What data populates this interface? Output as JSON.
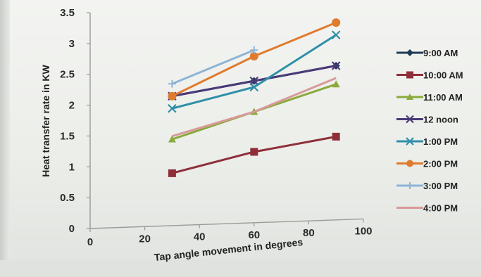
{
  "chart_data": {
    "type": "line",
    "xlabel": "Tap angle movement in degrees",
    "ylabel": "Heat transfer rate in KW",
    "xlim": [
      0,
      100
    ],
    "ylim": [
      0,
      3.5
    ],
    "x_ticks": [
      "0",
      "20",
      "40",
      "60",
      "80",
      "100"
    ],
    "y_ticks": [
      "0",
      "0.5",
      "1",
      "1.5",
      "2",
      "2.5",
      "3",
      "3.5"
    ],
    "grid": false,
    "legend_position": "right",
    "series": [
      {
        "name": "9:00 AM",
        "color": "#1f3a55",
        "marker": "diamond",
        "x": [
          30,
          60,
          90
        ],
        "y": [
          2.1,
          2.3,
          2.5
        ]
      },
      {
        "name": "10:00 AM",
        "color": "#8e2f3a",
        "marker": "square",
        "x": [
          30,
          60,
          90
        ],
        "y": [
          0.85,
          1.15,
          1.35
        ]
      },
      {
        "name": "11:00 AM",
        "color": "#8aaa3b",
        "marker": "triangle",
        "x": [
          30,
          60,
          90
        ],
        "y": [
          1.4,
          1.8,
          2.2
        ]
      },
      {
        "name": "12 noon",
        "color": "#4a3a78",
        "marker": "x",
        "x": [
          30,
          60,
          90
        ],
        "y": [
          2.1,
          2.3,
          2.5
        ]
      },
      {
        "name": "1:00 PM",
        "color": "#2f8fa8",
        "marker": "x",
        "x": [
          30,
          60,
          90
        ],
        "y": [
          1.9,
          2.2,
          3.0
        ]
      },
      {
        "name": "2:00 PM",
        "color": "#e07b2e",
        "marker": "circle",
        "x": [
          30,
          60,
          90
        ],
        "y": [
          2.1,
          2.7,
          3.2
        ]
      },
      {
        "name": "3:00 PM",
        "color": "#8fb4d6",
        "marker": "plus",
        "x": [
          30,
          60
        ],
        "y": [
          2.3,
          2.8
        ]
      },
      {
        "name": "4:00 PM",
        "color": "#d89a9a",
        "marker": "none",
        "x": [
          30,
          60,
          90
        ],
        "y": [
          1.45,
          1.8,
          2.3
        ]
      }
    ]
  }
}
